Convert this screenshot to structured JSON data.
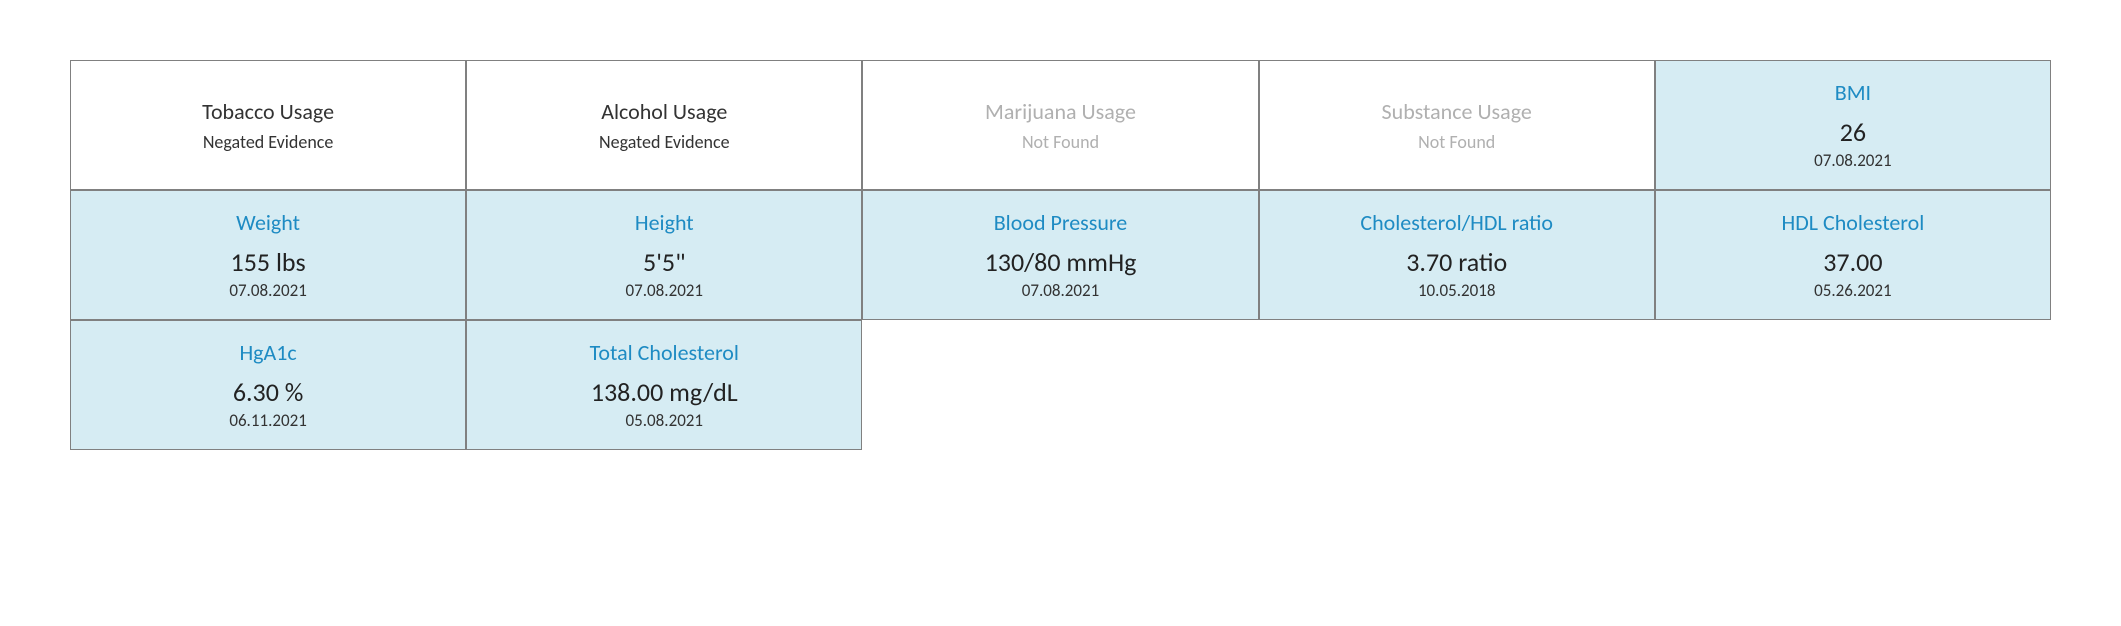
{
  "grid": {
    "columns": 5,
    "background_color": "#ffffff",
    "highlight_color": "#d6ecf3",
    "border_color": "#808080",
    "link_color": "#1e8bc3",
    "faded_color": "#b0b0b0",
    "text_color": "#333333"
  },
  "cells": [
    {
      "title": "Tobacco Usage",
      "sub": "Negated Evidence",
      "value": null,
      "date": null,
      "style": "plain"
    },
    {
      "title": "Alcohol Usage",
      "sub": "Negated Evidence",
      "value": null,
      "date": null,
      "style": "plain"
    },
    {
      "title": "Marijuana Usage",
      "sub": "Not Found",
      "value": null,
      "date": null,
      "style": "faded"
    },
    {
      "title": "Substance Usage",
      "sub": "Not Found",
      "value": null,
      "date": null,
      "style": "faded"
    },
    {
      "title": "BMI",
      "value": "26",
      "date": "07.08.2021",
      "style": "blue-link"
    },
    {
      "title": "Weight",
      "value": "155 lbs",
      "date": "07.08.2021",
      "style": "blue-link"
    },
    {
      "title": "Height",
      "value": "5'5\"",
      "date": "07.08.2021",
      "style": "blue-link"
    },
    {
      "title": "Blood Pressure",
      "value": "130/80 mmHg",
      "date": "07.08.2021",
      "style": "blue-link"
    },
    {
      "title": "Cholesterol/HDL ratio",
      "value": "3.70 ratio",
      "date": "10.05.2018",
      "style": "blue-link"
    },
    {
      "title": "HDL Cholesterol",
      "value": "37.00",
      "date": "05.26.2021",
      "style": "blue-link"
    },
    {
      "title": "HgA1c",
      "value": "6.30 %",
      "date": "06.11.2021",
      "style": "blue-link"
    },
    {
      "title": "Total Cholesterol",
      "value": "138.00 mg/dL",
      "date": "05.08.2021",
      "style": "blue-link"
    }
  ]
}
